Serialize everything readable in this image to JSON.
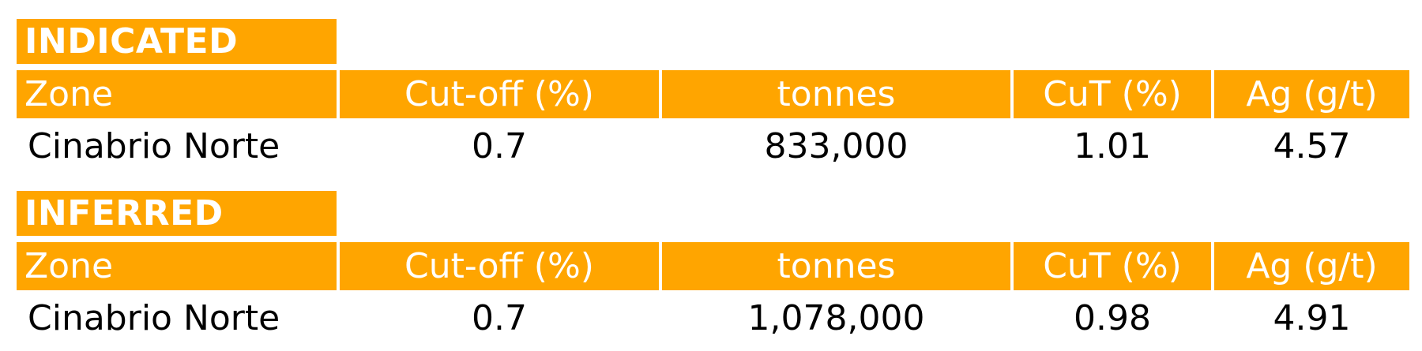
{
  "colors": {
    "header_background": "#FFA500",
    "header_text": "#FFFFFF",
    "body_text": "#000000"
  },
  "indicated": {
    "title": "INDICATED",
    "headers": [
      "Zone",
      "Cut-off (%)",
      "tonnes",
      "CuT (%)",
      "Ag (g/t)"
    ],
    "rows": [
      [
        "Cinabrio Norte",
        "0.7",
        "833,000",
        "1.01",
        "4.57"
      ]
    ]
  },
  "inferred": {
    "title": "INFERRED",
    "headers": [
      "Zone",
      "Cut-off (%)",
      "tonnes",
      "CuT (%)",
      "Ag (g/t)"
    ],
    "rows": [
      [
        "Cinabrio Norte",
        "0.7",
        "1,078,000",
        "0.98",
        "4.91"
      ]
    ]
  }
}
